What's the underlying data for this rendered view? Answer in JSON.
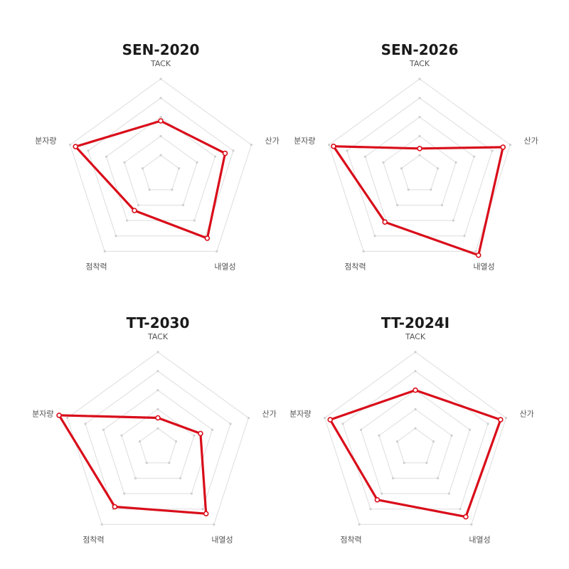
{
  "colors": {
    "series": "#d90d1a",
    "grid": "#dddddd",
    "grid_dot": "#cfcfcf",
    "marker_fill": "#ffffff"
  },
  "chart_data": [
    {
      "type": "radar",
      "title": "SEN-2020",
      "axes": [
        "TACK",
        "산가",
        "내열성",
        "점착력",
        "분자량"
      ],
      "rlim": [
        0,
        5
      ],
      "rings": 5,
      "grid": true,
      "series": [
        {
          "values": [
            2.8,
            3.55,
            4.15,
            2.35,
            4.7
          ]
        }
      ]
    },
    {
      "type": "radar",
      "title": "SEN-2026",
      "axes": [
        "TACK",
        "산가",
        "내열성",
        "점착력",
        "분자량"
      ],
      "rlim": [
        0,
        5
      ],
      "rings": 5,
      "grid": true,
      "series": [
        {
          "values": [
            1.35,
            4.6,
            5.25,
            3.1,
            4.75
          ]
        }
      ]
    },
    {
      "type": "radar",
      "title": "TT-2030",
      "axes": [
        "TACK",
        "산가",
        "내열성",
        "점착력",
        "분자량"
      ],
      "rlim": [
        0,
        5
      ],
      "rings": 5,
      "grid": true,
      "series": [
        {
          "values": [
            1.55,
            2.35,
            4.3,
            3.85,
            5.45
          ]
        }
      ]
    },
    {
      "type": "radar",
      "title": "TT-2024I",
      "axes": [
        "TACK",
        "산가",
        "내열성",
        "점착력",
        "분자량"
      ],
      "rlim": [
        0,
        5
      ],
      "rings": 5,
      "grid": true,
      "series": [
        {
          "values": [
            3.0,
            4.7,
            4.5,
            3.4,
            4.7
          ]
        }
      ]
    }
  ]
}
